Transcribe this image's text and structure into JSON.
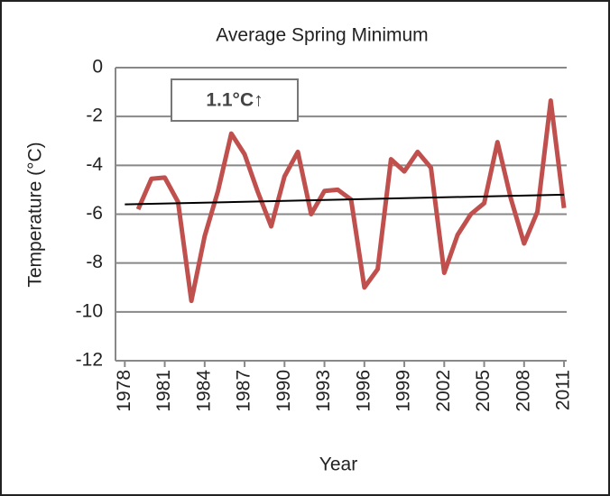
{
  "chart_data": {
    "type": "line",
    "title": "Average Spring Minimum",
    "x_label": "Year",
    "y_label": "Temperature (°C)",
    "annotation": "1.1°C↑",
    "x": [
      1979,
      1980,
      1981,
      1982,
      1983,
      1984,
      1985,
      1986,
      1987,
      1988,
      1989,
      1990,
      1991,
      1992,
      1993,
      1994,
      1995,
      1996,
      1997,
      1998,
      1999,
      2000,
      2001,
      2002,
      2003,
      2004,
      2005,
      2006,
      2007,
      2008,
      2009,
      2010,
      2011
    ],
    "series": [
      {
        "name": "Average Spring Minimum",
        "color": "#c0504d",
        "values": [
          -5.8,
          -4.55,
          -4.5,
          -5.5,
          -9.55,
          -6.9,
          -5.05,
          -2.7,
          -3.55,
          -5.1,
          -6.5,
          -4.45,
          -3.45,
          -6.0,
          -5.05,
          -5.0,
          -5.4,
          -9.0,
          -8.25,
          -3.75,
          -4.25,
          -3.45,
          -4.1,
          -8.4,
          -6.85,
          -6.0,
          -5.55,
          -3.05,
          -5.35,
          -7.2,
          -5.9,
          -1.35,
          -5.75
        ]
      }
    ],
    "trendline": {
      "color": "#000000",
      "x": [
        1978,
        2011
      ],
      "values": [
        -5.6,
        -5.2
      ]
    },
    "xlim": [
      1977.3,
      2011.2
    ],
    "xticks": [
      1978,
      1981,
      1984,
      1987,
      1990,
      1993,
      1996,
      1999,
      2002,
      2005,
      2008,
      2011
    ],
    "ylim": [
      -12,
      0
    ],
    "yticks": [
      0,
      -2,
      -4,
      -6,
      -8,
      -10,
      -12
    ],
    "grid": true
  }
}
